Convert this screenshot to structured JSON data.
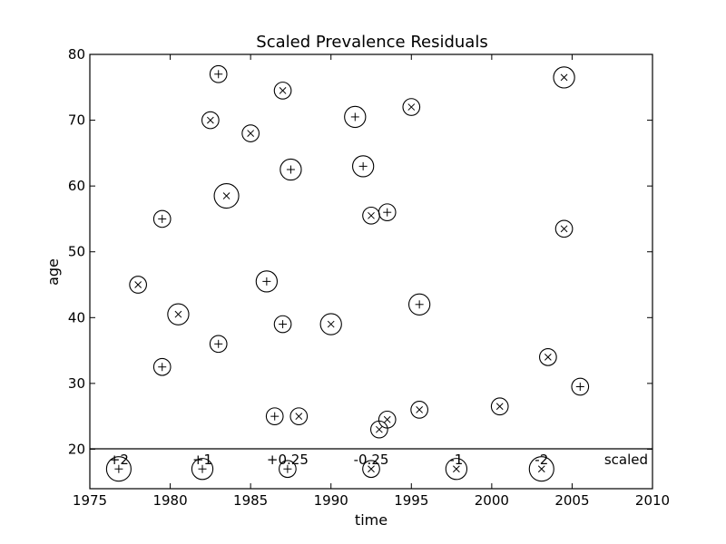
{
  "chart_data": {
    "type": "scatter",
    "title": "Scaled Prevalence Residuals",
    "xlabel": "time",
    "ylabel": "age",
    "xlim": [
      1975,
      2010
    ],
    "ylim": [
      14,
      80
    ],
    "x_ticks": [
      "1975",
      "1980",
      "1985",
      "1990",
      "1995",
      "2000",
      "2005",
      "2010"
    ],
    "y_ticks": [
      "20",
      "30",
      "40",
      "50",
      "60",
      "70",
      "80"
    ],
    "grid": false,
    "points": [
      {
        "x": 1983.0,
        "y": 77.0,
        "marker": "plus",
        "value": 0.25
      },
      {
        "x": 1987.0,
        "y": 74.5,
        "marker": "cross",
        "value": -0.25
      },
      {
        "x": 1982.5,
        "y": 70.0,
        "marker": "cross",
        "value": -0.25
      },
      {
        "x": 1985.0,
        "y": 68.0,
        "marker": "cross",
        "value": -0.25
      },
      {
        "x": 1991.5,
        "y": 70.5,
        "marker": "plus",
        "value": 1
      },
      {
        "x": 1995.0,
        "y": 72.0,
        "marker": "cross",
        "value": -0.25
      },
      {
        "x": 2004.5,
        "y": 76.5,
        "marker": "cross",
        "value": -1
      },
      {
        "x": 1987.5,
        "y": 62.5,
        "marker": "plus",
        "value": 1
      },
      {
        "x": 1992.0,
        "y": 63.0,
        "marker": "plus",
        "value": 1
      },
      {
        "x": 1983.5,
        "y": 58.5,
        "marker": "cross",
        "value": -2
      },
      {
        "x": 1979.5,
        "y": 55.0,
        "marker": "plus",
        "value": 0.25
      },
      {
        "x": 1992.5,
        "y": 55.5,
        "marker": "cross",
        "value": -0.25
      },
      {
        "x": 1993.5,
        "y": 56.0,
        "marker": "plus",
        "value": 0.25
      },
      {
        "x": 2004.5,
        "y": 53.5,
        "marker": "cross",
        "value": -0.25
      },
      {
        "x": 1978.0,
        "y": 45.0,
        "marker": "cross",
        "value": -0.25
      },
      {
        "x": 1986.0,
        "y": 45.5,
        "marker": "plus",
        "value": 1
      },
      {
        "x": 1980.5,
        "y": 40.5,
        "marker": "cross",
        "value": -1
      },
      {
        "x": 1987.0,
        "y": 39.0,
        "marker": "plus",
        "value": 0.25
      },
      {
        "x": 1990.0,
        "y": 39.0,
        "marker": "cross",
        "value": -1
      },
      {
        "x": 1995.5,
        "y": 42.0,
        "marker": "plus",
        "value": 1
      },
      {
        "x": 1983.0,
        "y": 36.0,
        "marker": "plus",
        "value": 0.25
      },
      {
        "x": 1979.5,
        "y": 32.5,
        "marker": "plus",
        "value": 0.25
      },
      {
        "x": 2003.5,
        "y": 34.0,
        "marker": "cross",
        "value": -0.25
      },
      {
        "x": 2005.5,
        "y": 29.5,
        "marker": "plus",
        "value": 0.25
      },
      {
        "x": 1986.5,
        "y": 25.0,
        "marker": "plus",
        "value": 0.25
      },
      {
        "x": 1988.0,
        "y": 25.0,
        "marker": "cross",
        "value": -0.25
      },
      {
        "x": 1993.0,
        "y": 23.0,
        "marker": "cross",
        "value": -0.25
      },
      {
        "x": 1993.5,
        "y": 24.5,
        "marker": "cross",
        "value": -0.25
      },
      {
        "x": 1995.5,
        "y": 26.0,
        "marker": "cross",
        "value": -0.25
      },
      {
        "x": 2000.5,
        "y": 26.5,
        "marker": "cross",
        "value": -0.25
      }
    ],
    "legend": {
      "title": "scaled",
      "placement": "bottom",
      "entries": [
        {
          "label": "+2",
          "value": 2,
          "marker": "plus",
          "x": 1976.8
        },
        {
          "label": "+1",
          "value": 1,
          "marker": "plus",
          "x": 1982.0
        },
        {
          "label": "+0.25",
          "value": 0.25,
          "marker": "plus",
          "x": 1987.3
        },
        {
          "label": "-0.25",
          "value": -0.25,
          "marker": "cross",
          "x": 1992.5
        },
        {
          "label": "-1",
          "value": -1,
          "marker": "cross",
          "x": 1997.8
        },
        {
          "label": "-2",
          "value": -2,
          "marker": "cross",
          "x": 2003.1
        }
      ]
    }
  }
}
